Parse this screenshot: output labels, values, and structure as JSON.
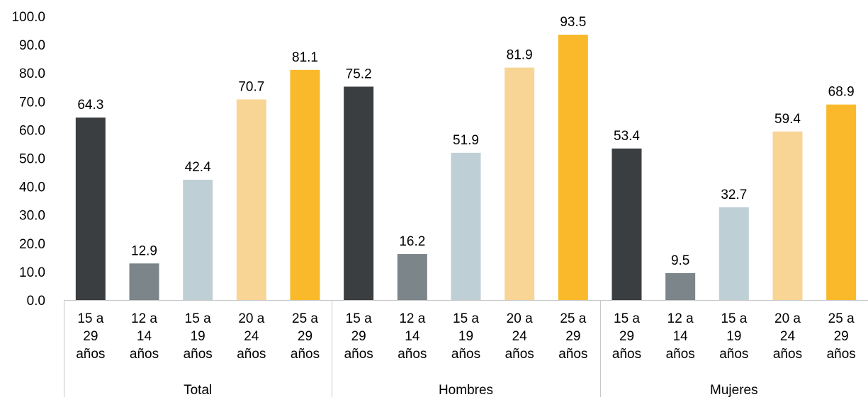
{
  "chart_data": {
    "type": "bar",
    "title": "",
    "xlabel": "",
    "ylabel": "",
    "ylim": [
      0,
      100
    ],
    "yticks": [
      "0.0",
      "10.0",
      "20.0",
      "30.0",
      "40.0",
      "50.0",
      "60.0",
      "70.0",
      "80.0",
      "90.0",
      "100.0"
    ],
    "grid": false,
    "legend": "none",
    "groups": [
      {
        "name": "Total",
        "bars": [
          {
            "label": [
              "15 a",
              "29",
              "años"
            ],
            "value": 64.3,
            "color": "#3b3e41"
          },
          {
            "label": [
              "12 a",
              "14",
              "años"
            ],
            "value": 12.9,
            "color": "#7b858a"
          },
          {
            "label": [
              "15 a",
              "19",
              "años"
            ],
            "value": 42.4,
            "color": "#bfcfd6"
          },
          {
            "label": [
              "20 a",
              "24",
              "años"
            ],
            "value": 70.7,
            "color": "#f8d495"
          },
          {
            "label": [
              "25 a",
              "29",
              "años"
            ],
            "value": 81.1,
            "color": "#f9b92b"
          }
        ]
      },
      {
        "name": "Hombres",
        "bars": [
          {
            "label": [
              "15 a",
              "29",
              "años"
            ],
            "value": 75.2,
            "color": "#3b3e41"
          },
          {
            "label": [
              "12 a",
              "14",
              "años"
            ],
            "value": 16.2,
            "color": "#7b858a"
          },
          {
            "label": [
              "15 a",
              "19",
              "años"
            ],
            "value": 51.9,
            "color": "#bfcfd6"
          },
          {
            "label": [
              "20 a",
              "24",
              "años"
            ],
            "value": 81.9,
            "color": "#f8d495"
          },
          {
            "label": [
              "25 a",
              "29",
              "años"
            ],
            "value": 93.5,
            "color": "#f9b92b"
          }
        ]
      },
      {
        "name": "Mujeres",
        "bars": [
          {
            "label": [
              "15 a",
              "29",
              "años"
            ],
            "value": 53.4,
            "color": "#3b3e41"
          },
          {
            "label": [
              "12 a",
              "14",
              "años"
            ],
            "value": 9.5,
            "color": "#7b858a"
          },
          {
            "label": [
              "15 a",
              "19",
              "años"
            ],
            "value": 32.7,
            "color": "#bfcfd6"
          },
          {
            "label": [
              "20 a",
              "24",
              "años"
            ],
            "value": 59.4,
            "color": "#f8d495"
          },
          {
            "label": [
              "25 a",
              "29",
              "años"
            ],
            "value": 68.9,
            "color": "#f9b92b"
          }
        ]
      }
    ]
  }
}
